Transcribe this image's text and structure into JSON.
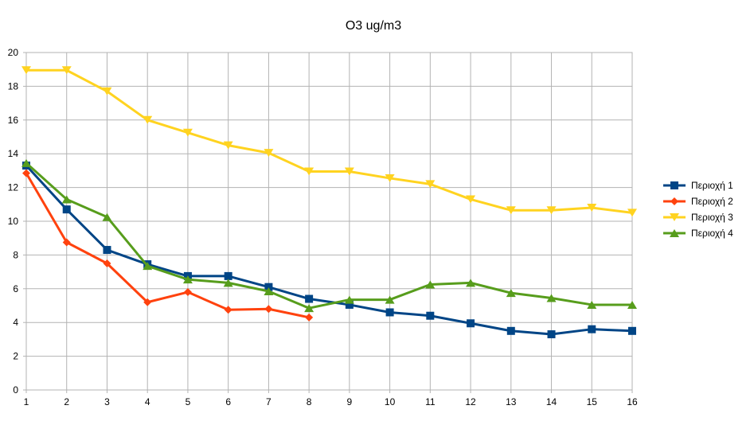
{
  "chart_data": {
    "type": "line",
    "title": "O3 ug/m3",
    "xlabel": "",
    "ylabel": "",
    "x": [
      1,
      2,
      3,
      4,
      5,
      6,
      7,
      8,
      9,
      10,
      11,
      12,
      13,
      14,
      15,
      16
    ],
    "xlim": [
      1,
      16
    ],
    "ylim": [
      0,
      20
    ],
    "y_ticks": [
      0,
      2,
      4,
      6,
      8,
      10,
      12,
      14,
      16,
      18,
      20
    ],
    "grid": true,
    "legend_position": "right",
    "series": [
      {
        "name": "Περιοχή 1",
        "color": "#004586",
        "marker": "square",
        "values": [
          13.3,
          10.7,
          8.3,
          7.45,
          6.75,
          6.75,
          6.1,
          5.4,
          5.05,
          4.6,
          4.4,
          3.95,
          3.5,
          3.3,
          3.6,
          3.5
        ]
      },
      {
        "name": "Περιοχή 2",
        "color": "#ff420e",
        "marker": "diamond",
        "values": [
          12.85,
          8.75,
          7.5,
          5.2,
          5.8,
          4.75,
          4.8,
          4.3,
          null,
          null,
          null,
          null,
          null,
          null,
          null,
          null
        ]
      },
      {
        "name": "Περιοχή 3",
        "color": "#ffd320",
        "marker": "triangle-down",
        "values": [
          18.95,
          18.95,
          17.7,
          16.0,
          15.25,
          14.5,
          14.05,
          12.95,
          12.95,
          12.55,
          12.2,
          11.3,
          10.65,
          10.65,
          10.8,
          10.5
        ]
      },
      {
        "name": "Περιοχή 4",
        "color": "#579d1c",
        "marker": "triangle-up",
        "values": [
          13.45,
          11.3,
          10.25,
          7.35,
          6.55,
          6.35,
          5.85,
          4.85,
          5.35,
          5.35,
          6.25,
          6.35,
          5.75,
          5.45,
          5.05,
          5.05
        ]
      }
    ]
  }
}
